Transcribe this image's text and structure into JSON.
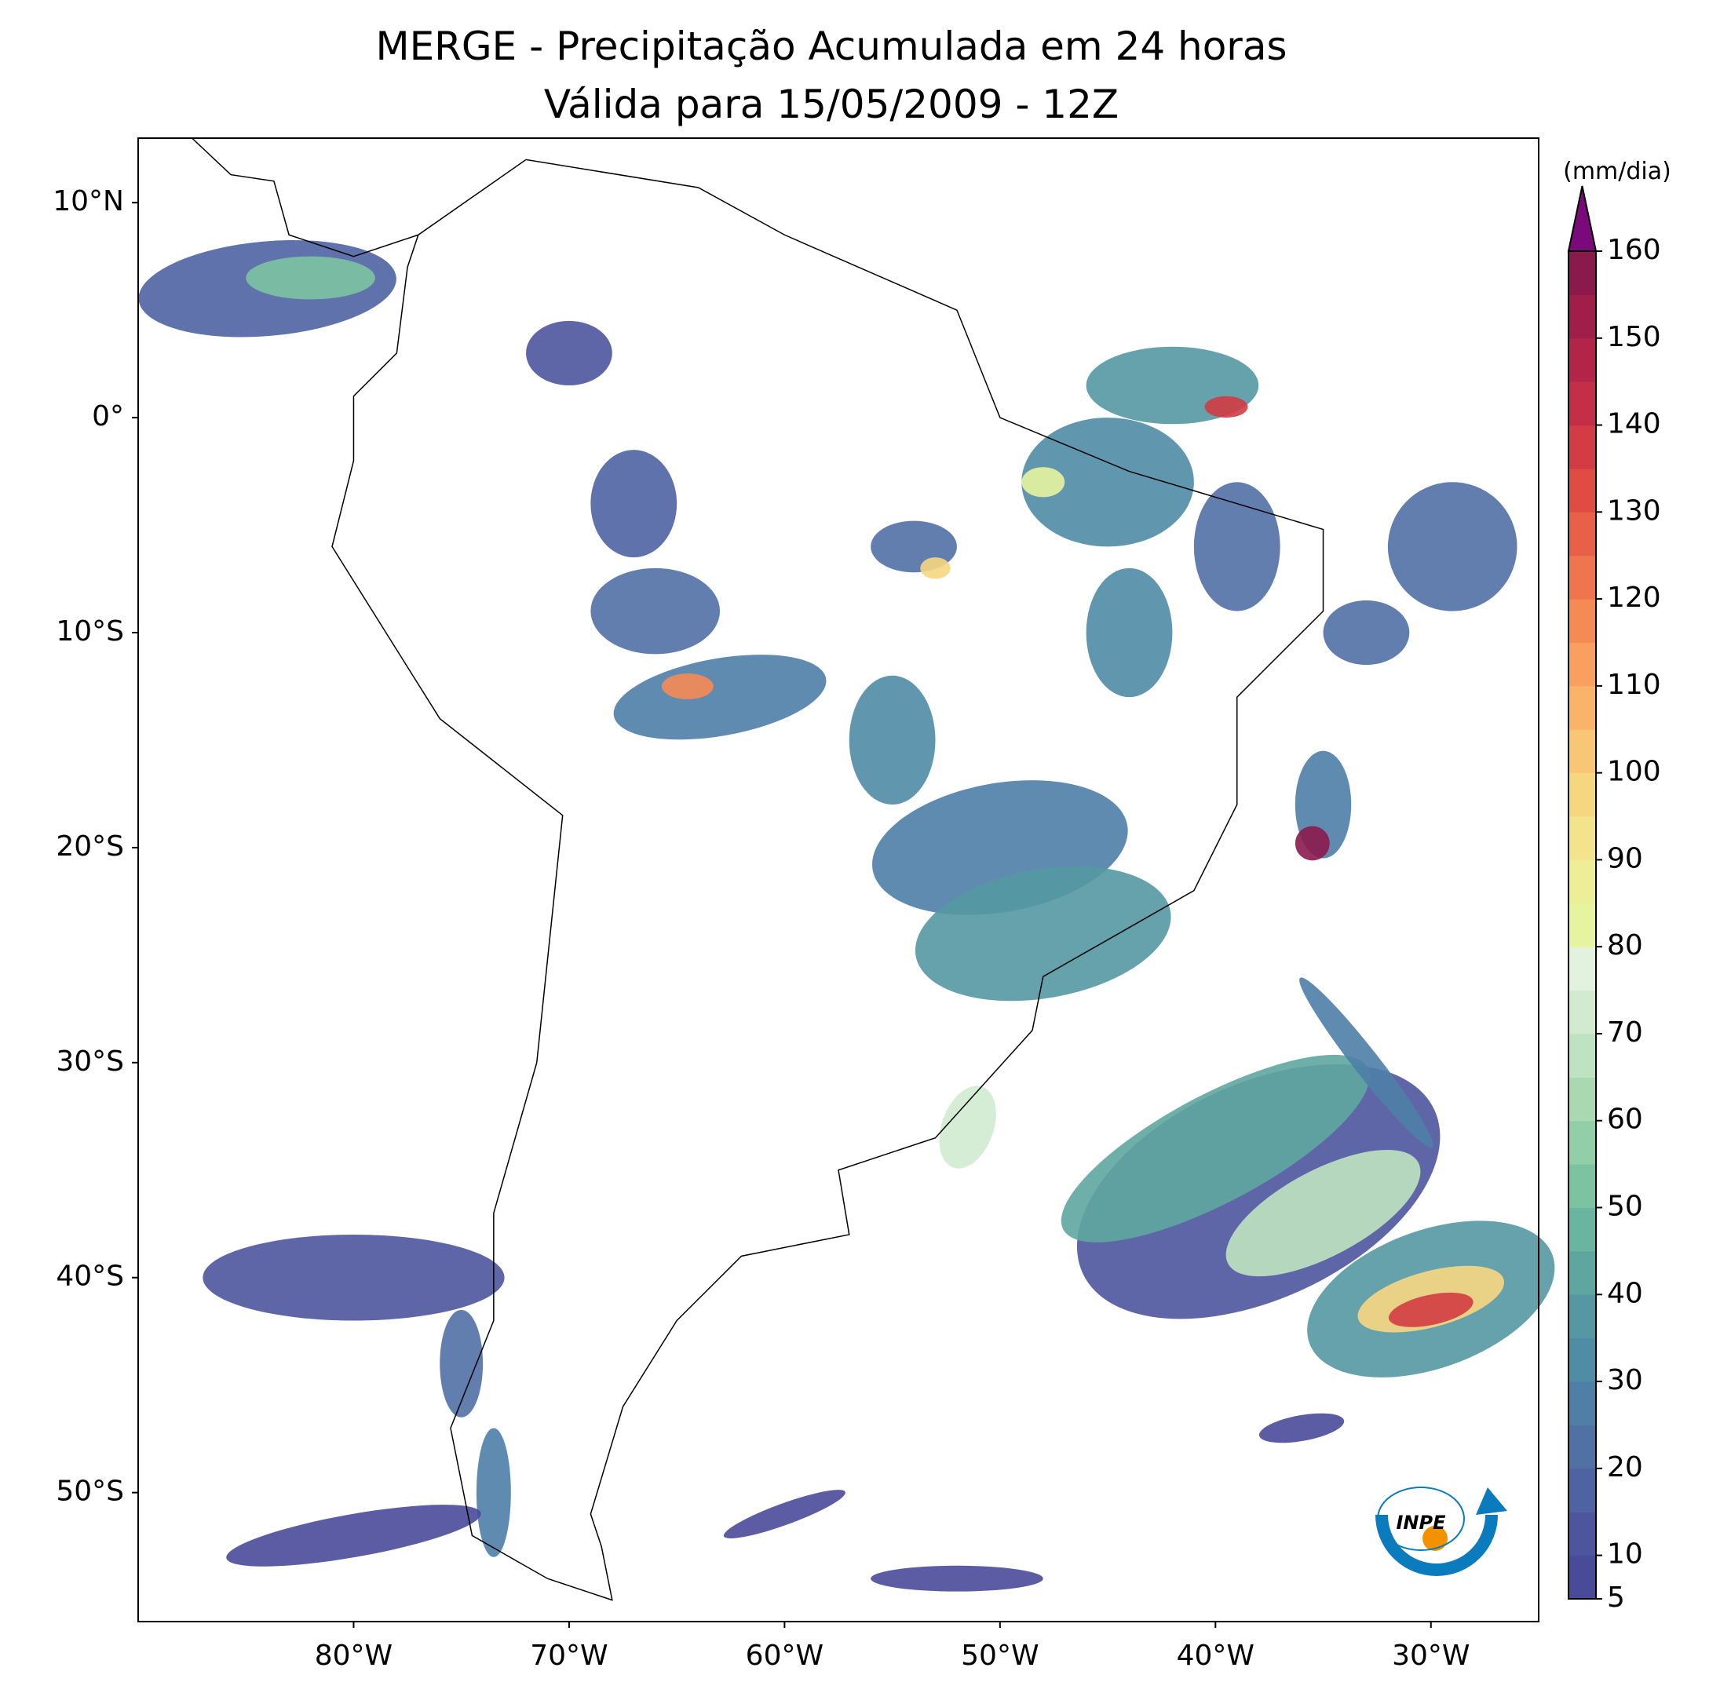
{
  "map": {
    "title": "MERGE - Precipitação Acumulada em 24 horas",
    "subtitle": "Válida para 15/05/2009 - 12Z",
    "xlim": [
      -90,
      -25
    ],
    "ylim": [
      -56,
      13
    ],
    "xticks": [
      {
        "value": -80,
        "label": "80°W"
      },
      {
        "value": -70,
        "label": "70°W"
      },
      {
        "value": -60,
        "label": "60°W"
      },
      {
        "value": -50,
        "label": "50°W"
      },
      {
        "value": -40,
        "label": "40°W"
      },
      {
        "value": -30,
        "label": "30°W"
      }
    ],
    "yticks": [
      {
        "value": 10,
        "label": "10°N"
      },
      {
        "value": 0,
        "label": "0°"
      },
      {
        "value": -10,
        "label": "10°S"
      },
      {
        "value": -20,
        "label": "20°S"
      },
      {
        "value": -30,
        "label": "30°S"
      },
      {
        "value": -40,
        "label": "40°S"
      },
      {
        "value": -50,
        "label": "50°S"
      }
    ],
    "colorbar": {
      "unit": "(mm/dia)",
      "ylim": [
        5,
        160
      ],
      "yticks": [
        5,
        10,
        20,
        30,
        40,
        50,
        60,
        70,
        80,
        90,
        100,
        110,
        120,
        130,
        140,
        150,
        160
      ],
      "colors": [
        "#4a4a9a",
        "#4d559f",
        "#4f63a3",
        "#5070a6",
        "#4f7ea7",
        "#4f8ca6",
        "#5598a3",
        "#5fa6a0",
        "#6ab5a0",
        "#7cc3a2",
        "#92cfa8",
        "#aad9b1",
        "#bfe3c0",
        "#d2ebd0",
        "#e2f2de",
        "#e6f4a0",
        "#eeee98",
        "#f3e38c",
        "#f7d681",
        "#f9c675",
        "#fab46a",
        "#f9a060",
        "#f68a55",
        "#f0744d",
        "#e86048",
        "#de4c44",
        "#d23c44",
        "#c42e46",
        "#b32548",
        "#a01f4a",
        "#8b1a4c"
      ],
      "extend_color": "#7a0a7a"
    },
    "logo": "INPE"
  }
}
